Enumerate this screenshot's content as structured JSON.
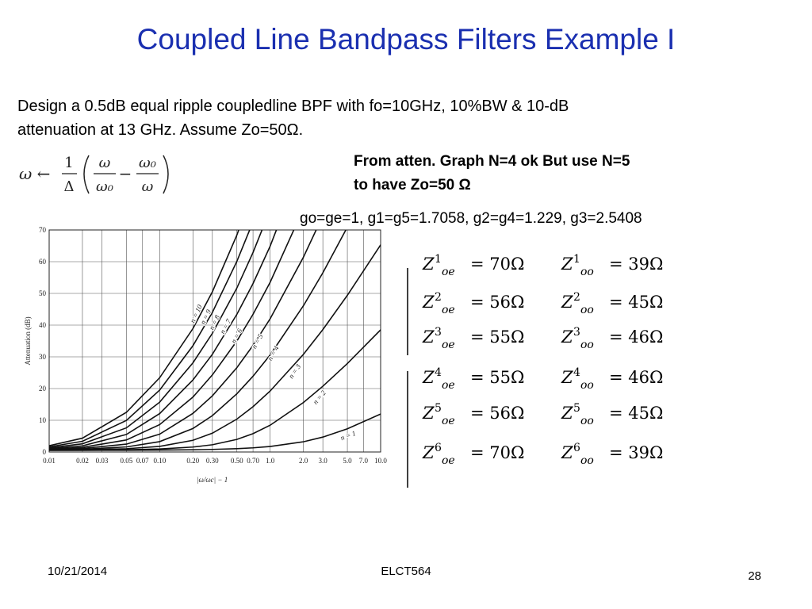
{
  "title": "Coupled Line Bandpass Filters Example I",
  "body": {
    "line1": "Design a 0.5dB equal ripple coupledline BPF with fo=10GHz, 10%BW & 10-dB",
    "line2": "attenuation at 13 GHz. Assume Zo=50Ω."
  },
  "note": {
    "line1": "From atten. Graph N=4 ok But use N=5",
    "line2": "to have Zo=50 Ω"
  },
  "g_values": "go=ge=1, g1=g5=1.7058, g2=g4=1.229, g3=2.5408",
  "formula": {
    "lhs": "ω ←",
    "frac_num": "1",
    "frac_den": "Δ",
    "t1_num": "ω",
    "t1_den": "ω₀",
    "minus": "−",
    "t2_num": "ω₀",
    "t2_den": "ω"
  },
  "impedances": {
    "symbol": "Z",
    "even_sub": "oe",
    "odd_sub": "oo",
    "rows": [
      {
        "n": "1",
        "even": "= 70Ω",
        "odd": "= 39Ω"
      },
      {
        "n": "2",
        "even": "= 56Ω",
        "odd": "= 45Ω"
      },
      {
        "n": "3",
        "even": "= 55Ω",
        "odd": "= 46Ω"
      },
      {
        "n": "4",
        "even": "= 55Ω",
        "odd": "= 46Ω"
      },
      {
        "n": "5",
        "even": "= 56Ω",
        "odd": "= 45Ω"
      },
      {
        "n": "6",
        "even": "= 70Ω",
        "odd": "= 39Ω"
      }
    ]
  },
  "chart_data": {
    "type": "line",
    "y_label": "Attenuation (dB)",
    "x_label": "|ω/ωc| − 1",
    "x_scale": "log",
    "grid": true,
    "xlim": [
      0.01,
      10
    ],
    "ylim": [
      0,
      70
    ],
    "yticks": [
      0,
      10,
      20,
      30,
      40,
      50,
      60,
      70
    ],
    "xticks": [
      0.01,
      0.02,
      0.03,
      0.05,
      0.07,
      {
        "value": 0.1,
        "label": "0.10"
      },
      {
        "value": 0.2,
        "label": "0.20"
      },
      {
        "value": 0.3,
        "label": "0.30"
      },
      {
        "value": 0.5,
        "label": "0.50"
      },
      {
        "value": 0.7,
        "label": "0.70"
      },
      {
        "value": 1,
        "label": "1.0"
      },
      {
        "value": 2,
        "label": "2.0"
      },
      {
        "value": 3,
        "label": "3.0"
      },
      {
        "value": 5,
        "label": "5.0"
      },
      {
        "value": 7,
        "label": "7.0"
      },
      {
        "value": 10,
        "label": "10.0"
      }
    ],
    "x": [
      0.01,
      0.02,
      0.05,
      0.1,
      0.2,
      0.3,
      0.5,
      0.7,
      1,
      2,
      3,
      5,
      10
    ],
    "series": [
      {
        "name": "n = 1",
        "color": "#111111",
        "values": [
          0.51,
          0.52,
          0.55,
          0.6,
          0.7,
          0.81,
          1.05,
          1.31,
          1.73,
          3.22,
          4.7,
          7.32,
          11.98
        ]
      },
      {
        "name": "n = 2",
        "color": "#111111",
        "values": [
          0.54,
          0.58,
          0.71,
          0.96,
          1.56,
          2.28,
          3.97,
          5.78,
          8.44,
          15.59,
          20.73,
          27.9,
          38.5
        ]
      },
      {
        "name": "n = 3",
        "color": "#111111",
        "values": [
          0.59,
          0.69,
          1.03,
          1.76,
          3.69,
          5.93,
          10.37,
          14.29,
          19.22,
          30.78,
          38.6,
          49.4,
          65.3
        ]
      },
      {
        "name": "n = 4",
        "color": "#111111",
        "values": [
          0.66,
          0.86,
          1.59,
          3.27,
          7.4,
          11.47,
          18.35,
          23.89,
          30.6,
          46.1,
          56.5,
          70.9,
          null
        ]
      },
      {
        "name": "n = 5",
        "color": "#111111",
        "values": [
          0.77,
          1.11,
          2.48,
          5.62,
          12.16,
          17.7,
          26.6,
          33.6,
          42,
          61.4,
          74.5,
          null,
          null
        ]
      },
      {
        "name": "n = 6",
        "color": "#111111",
        "values": [
          0.91,
          1.46,
          3.79,
          8.64,
          17.3,
          24.3,
          35,
          43.4,
          53.5,
          76.7,
          null,
          null,
          null
        ]
      },
      {
        "name": "n = 7",
        "color": "#111111",
        "values": [
          1.09,
          1.94,
          5.53,
          12.1,
          22.7,
          30.8,
          43.4,
          53.1,
          64.9,
          92,
          null,
          null,
          null
        ]
      },
      {
        "name": "n = 8",
        "color": "#111111",
        "values": [
          1.32,
          2.58,
          7.6,
          15.7,
          28.1,
          37.4,
          51.7,
          62.9,
          76.4,
          null,
          null,
          null,
          null
        ]
      },
      {
        "name": "n = 9",
        "color": "#111111",
        "values": [
          1.62,
          3.38,
          9.95,
          19.5,
          33.5,
          44,
          60.1,
          72.6,
          null,
          null,
          null,
          null,
          null
        ]
      },
      {
        "name": "n = 10",
        "color": "#111111",
        "values": [
          1.97,
          4.36,
          12.5,
          23.4,
          38.9,
          50.5,
          68.4,
          82.4,
          null,
          null,
          null,
          null,
          null
        ]
      }
    ]
  },
  "footer": {
    "date": "10/21/2014",
    "course": "ELCT564",
    "page": "28"
  }
}
